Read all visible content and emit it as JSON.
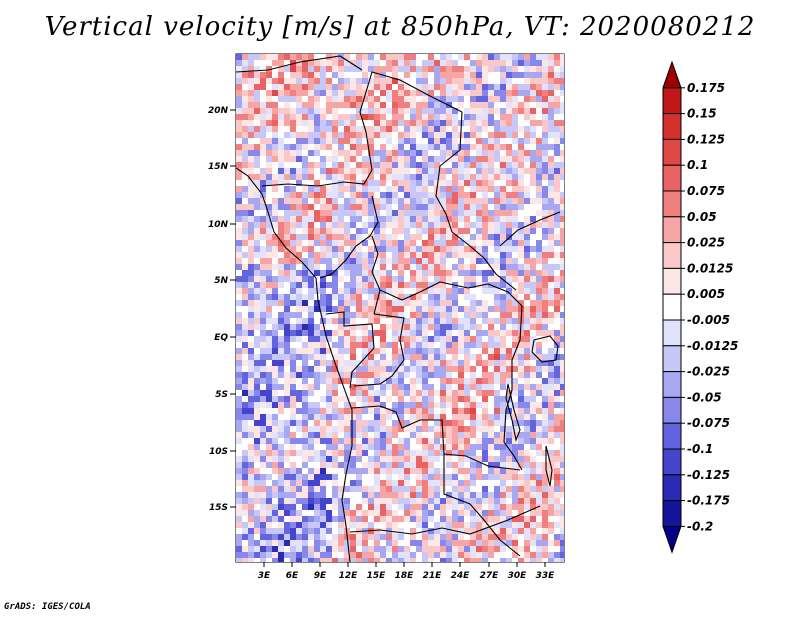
{
  "title": "Vertical velocity [m/s] at 850hPa, VT: 2020080212",
  "footer": "GrADS: IGES/COLA",
  "map": {
    "lat_ticks": [
      "20N",
      "15N",
      "10N",
      "5N",
      "EQ",
      "5S",
      "10S",
      "15S"
    ],
    "lon_ticks": [
      "3E",
      "6E",
      "9E",
      "12E",
      "15E",
      "18E",
      "21E",
      "24E",
      "27E",
      "30E",
      "33E"
    ],
    "field": "Vertical velocity",
    "units": "m/s",
    "level": "850hPa",
    "valid_time": "2020080212"
  },
  "colorbar": {
    "labels": [
      "0.175",
      "0.15",
      "0.125",
      "0.1",
      "0.075",
      "0.05",
      "0.025",
      "0.0125",
      "0.005",
      "-0.005",
      "-0.0125",
      "-0.025",
      "-0.05",
      "-0.075",
      "-0.1",
      "-0.125",
      "-0.175",
      "-0.2"
    ],
    "colors": [
      "#a00000",
      "#c01818",
      "#d43030",
      "#e04848",
      "#e86464",
      "#f08080",
      "#f6a4a4",
      "#fac8c8",
      "#fde6e6",
      "#ffffff",
      "#e2e2fc",
      "#c8c8f8",
      "#a8a8f2",
      "#8888ea",
      "#6464de",
      "#4444cc",
      "#2a2ab4",
      "#14149c",
      "#000088"
    ]
  }
}
